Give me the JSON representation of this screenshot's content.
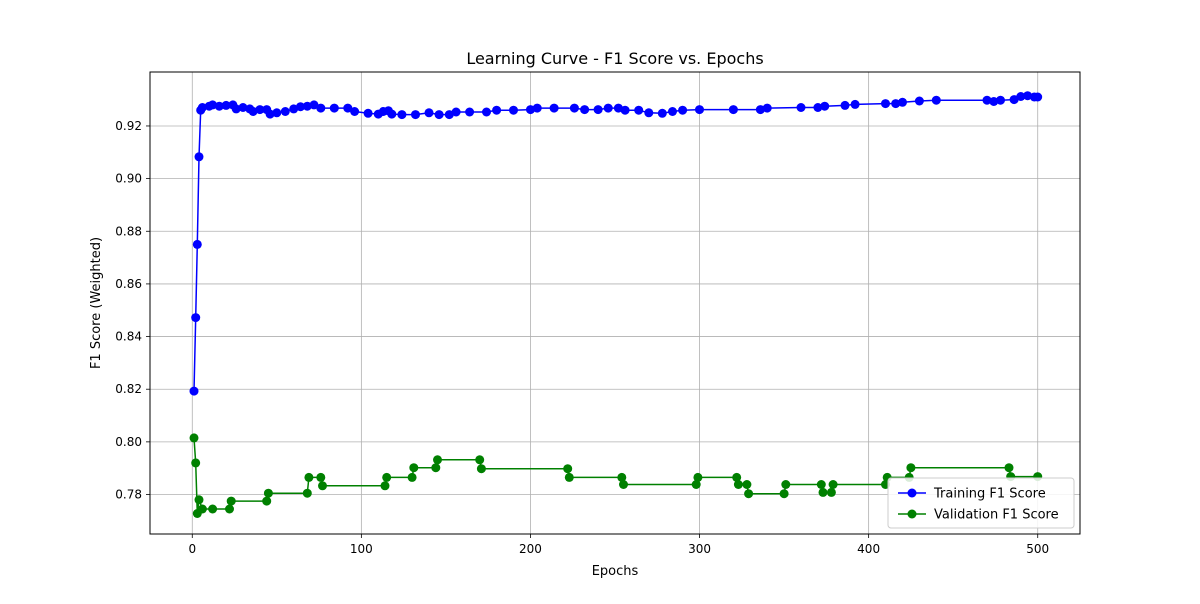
{
  "chart_data": {
    "type": "line",
    "title": "Learning Curve - F1 Score vs. Epochs",
    "xlabel": "Epochs",
    "ylabel": "F1 Score (Weighted)",
    "xlim": [
      -25,
      525
    ],
    "ylim": [
      0.765,
      0.9405
    ],
    "xticks": [
      0,
      100,
      200,
      300,
      400,
      500
    ],
    "xtick_labels": [
      "0",
      "100",
      "200",
      "300",
      "400",
      "500"
    ],
    "yticks": [
      0.78,
      0.8,
      0.82,
      0.84,
      0.86,
      0.88,
      0.9,
      0.92
    ],
    "ytick_labels": [
      "0.78",
      "0.80",
      "0.82",
      "0.84",
      "0.86",
      "0.88",
      "0.90",
      "0.92"
    ],
    "grid": true,
    "legend_position": "lower-right",
    "marker": "circle",
    "series": [
      {
        "name": "Training F1 Score",
        "color": "#0000ff",
        "points": [
          [
            1,
            0.8193
          ],
          [
            2,
            0.8472
          ],
          [
            3,
            0.875
          ],
          [
            4,
            0.9083
          ],
          [
            5,
            0.926
          ],
          [
            6,
            0.927
          ],
          [
            10,
            0.9275
          ],
          [
            12,
            0.928
          ],
          [
            16,
            0.9275
          ],
          [
            20,
            0.9278
          ],
          [
            24,
            0.928
          ],
          [
            26,
            0.9265
          ],
          [
            30,
            0.927
          ],
          [
            34,
            0.9265
          ],
          [
            36,
            0.9255
          ],
          [
            40,
            0.9262
          ],
          [
            44,
            0.9262
          ],
          [
            46,
            0.9245
          ],
          [
            50,
            0.925
          ],
          [
            55,
            0.9255
          ],
          [
            60,
            0.9265
          ],
          [
            64,
            0.9273
          ],
          [
            68,
            0.9275
          ],
          [
            72,
            0.928
          ],
          [
            76,
            0.9268
          ],
          [
            84,
            0.9268
          ],
          [
            92,
            0.9268
          ],
          [
            96,
            0.9255
          ],
          [
            104,
            0.9248
          ],
          [
            110,
            0.9245
          ],
          [
            113,
            0.9255
          ],
          [
            116,
            0.9258
          ],
          [
            118,
            0.9245
          ],
          [
            124,
            0.9243
          ],
          [
            132,
            0.9243
          ],
          [
            140,
            0.925
          ],
          [
            146,
            0.9243
          ],
          [
            152,
            0.9243
          ],
          [
            156,
            0.9253
          ],
          [
            164,
            0.9253
          ],
          [
            174,
            0.9253
          ],
          [
            180,
            0.926
          ],
          [
            190,
            0.926
          ],
          [
            200,
            0.9262
          ],
          [
            204,
            0.9268
          ],
          [
            214,
            0.9268
          ],
          [
            226,
            0.9268
          ],
          [
            232,
            0.9262
          ],
          [
            240,
            0.9262
          ],
          [
            246,
            0.9268
          ],
          [
            252,
            0.9268
          ],
          [
            256,
            0.926
          ],
          [
            264,
            0.926
          ],
          [
            270,
            0.925
          ],
          [
            278,
            0.9248
          ],
          [
            284,
            0.9255
          ],
          [
            290,
            0.926
          ],
          [
            300,
            0.9262
          ],
          [
            320,
            0.9262
          ],
          [
            336,
            0.9262
          ],
          [
            340,
            0.9268
          ],
          [
            360,
            0.927
          ],
          [
            370,
            0.927
          ],
          [
            374,
            0.9275
          ],
          [
            386,
            0.9278
          ],
          [
            392,
            0.9282
          ],
          [
            410,
            0.9285
          ],
          [
            416,
            0.9285
          ],
          [
            420,
            0.929
          ],
          [
            430,
            0.9295
          ],
          [
            440,
            0.9298
          ],
          [
            470,
            0.9298
          ],
          [
            474,
            0.9293
          ],
          [
            478,
            0.9298
          ],
          [
            486,
            0.93
          ],
          [
            490,
            0.9312
          ],
          [
            494,
            0.9315
          ],
          [
            498,
            0.931
          ],
          [
            500,
            0.931
          ]
        ]
      },
      {
        "name": "Validation F1 Score",
        "color": "#008000",
        "points": [
          [
            1,
            0.8015
          ],
          [
            2,
            0.792
          ],
          [
            3,
            0.7728
          ],
          [
            4,
            0.778
          ],
          [
            6,
            0.7745
          ],
          [
            12,
            0.7745
          ],
          [
            22,
            0.7745
          ],
          [
            23,
            0.7775
          ],
          [
            44,
            0.7775
          ],
          [
            45,
            0.7805
          ],
          [
            68,
            0.7805
          ],
          [
            69,
            0.7865
          ],
          [
            76,
            0.7865
          ],
          [
            77,
            0.7833
          ],
          [
            114,
            0.7833
          ],
          [
            115,
            0.7865
          ],
          [
            130,
            0.7865
          ],
          [
            131,
            0.7902
          ],
          [
            144,
            0.7902
          ],
          [
            145,
            0.7932
          ],
          [
            170,
            0.7932
          ],
          [
            171,
            0.7898
          ],
          [
            222,
            0.7898
          ],
          [
            223,
            0.7865
          ],
          [
            254,
            0.7865
          ],
          [
            255,
            0.7838
          ],
          [
            298,
            0.7838
          ],
          [
            299,
            0.7865
          ],
          [
            322,
            0.7865
          ],
          [
            323,
            0.7838
          ],
          [
            328,
            0.7838
          ],
          [
            329,
            0.7803
          ],
          [
            350,
            0.7803
          ],
          [
            351,
            0.7838
          ],
          [
            372,
            0.7838
          ],
          [
            373,
            0.7808
          ],
          [
            378,
            0.7808
          ],
          [
            379,
            0.7838
          ],
          [
            410,
            0.7838
          ],
          [
            411,
            0.7865
          ],
          [
            424,
            0.7865
          ],
          [
            425,
            0.7902
          ],
          [
            483,
            0.7902
          ],
          [
            484,
            0.7868
          ],
          [
            500,
            0.7868
          ]
        ]
      }
    ]
  }
}
